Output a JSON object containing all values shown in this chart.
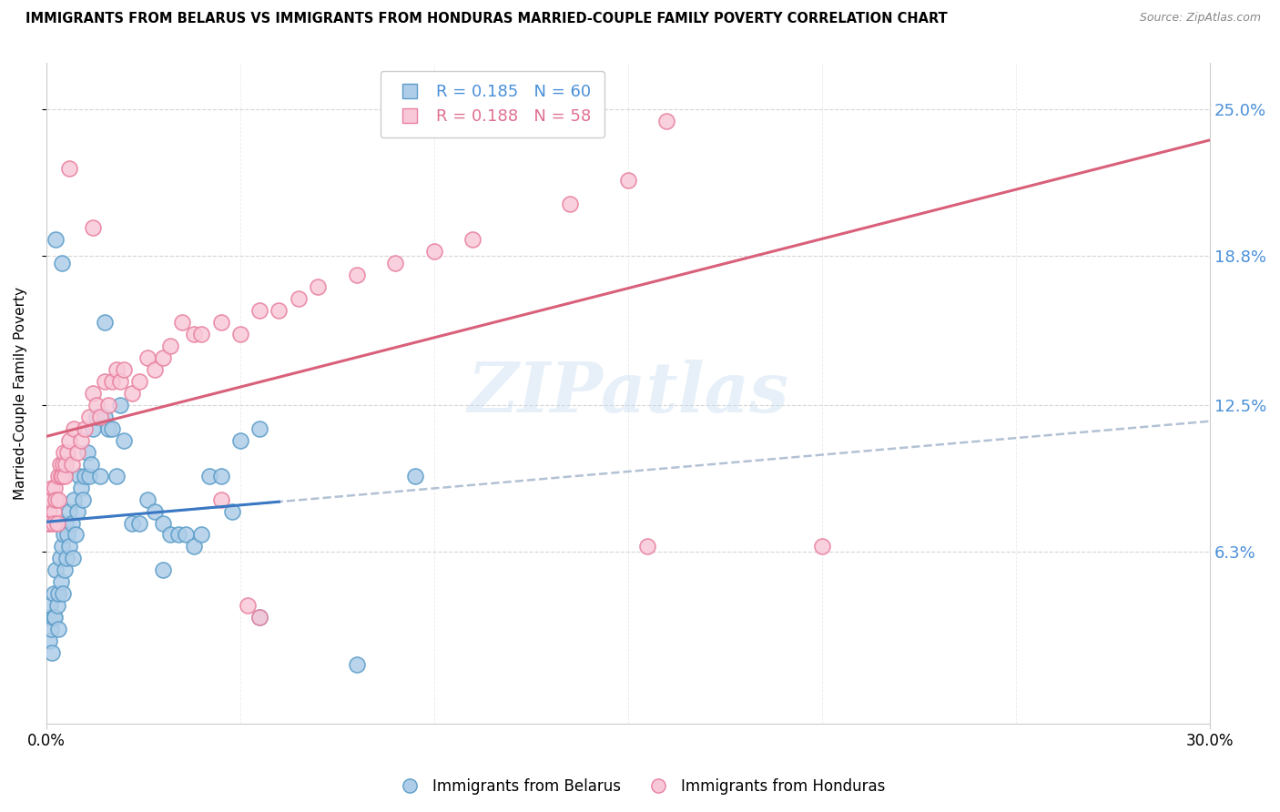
{
  "title": "IMMIGRANTS FROM BELARUS VS IMMIGRANTS FROM HONDURAS MARRIED-COUPLE FAMILY POVERTY CORRELATION CHART",
  "source": "Source: ZipAtlas.com",
  "ylabel": "Married-Couple Family Poverty",
  "ylabel_ticks": [
    "6.3%",
    "12.5%",
    "18.8%",
    "25.0%"
  ],
  "ylabel_vals": [
    6.3,
    12.5,
    18.8,
    25.0
  ],
  "xlim": [
    0.0,
    30.0
  ],
  "ylim": [
    -1.0,
    27.0
  ],
  "watermark": "ZIPatlas",
  "belarus_color": "#aecde8",
  "belarus_edge": "#5b9dc9",
  "honduras_color": "#f8c8d8",
  "honduras_edge": "#e8809e",
  "belarus_line_color": "#3a78c4",
  "honduras_line_color": "#d9607a",
  "gray_dashed_color": "#aabbd0",
  "belarus_R": 0.185,
  "belarus_N": 60,
  "honduras_R": 0.188,
  "honduras_N": 58,
  "belarus_x": [
    0.05,
    0.08,
    0.1,
    0.12,
    0.15,
    0.18,
    0.2,
    0.22,
    0.25,
    0.28,
    0.3,
    0.32,
    0.35,
    0.38,
    0.4,
    0.42,
    0.45,
    0.48,
    0.5,
    0.52,
    0.55,
    0.58,
    0.6,
    0.65,
    0.68,
    0.7,
    0.75,
    0.8,
    0.85,
    0.9,
    0.95,
    1.0,
    1.05,
    1.1,
    1.15,
    1.2,
    1.3,
    1.4,
    1.5,
    1.6,
    1.7,
    1.8,
    1.9,
    2.0,
    2.2,
    2.4,
    2.6,
    2.8,
    3.0,
    3.2,
    3.4,
    3.6,
    3.8,
    4.0,
    4.2,
    4.5,
    4.8,
    5.0,
    5.5,
    9.5
  ],
  "belarus_y": [
    3.5,
    2.5,
    4.0,
    3.0,
    2.0,
    3.5,
    4.5,
    3.5,
    5.5,
    4.0,
    3.0,
    4.5,
    6.0,
    5.0,
    6.5,
    4.5,
    7.0,
    5.5,
    7.5,
    6.0,
    7.0,
    6.5,
    8.0,
    7.5,
    6.0,
    8.5,
    7.0,
    8.0,
    9.5,
    9.0,
    8.5,
    9.5,
    10.5,
    9.5,
    10.0,
    11.5,
    12.0,
    9.5,
    12.0,
    11.5,
    11.5,
    9.5,
    12.5,
    11.0,
    7.5,
    7.5,
    8.5,
    8.0,
    7.5,
    7.0,
    7.0,
    7.0,
    6.5,
    7.0,
    9.5,
    9.5,
    8.0,
    11.0,
    11.5,
    9.5
  ],
  "honduras_x": [
    0.05,
    0.08,
    0.1,
    0.12,
    0.15,
    0.18,
    0.2,
    0.22,
    0.25,
    0.28,
    0.3,
    0.32,
    0.35,
    0.38,
    0.4,
    0.42,
    0.45,
    0.48,
    0.5,
    0.55,
    0.6,
    0.65,
    0.7,
    0.8,
    0.9,
    1.0,
    1.1,
    1.2,
    1.3,
    1.4,
    1.5,
    1.6,
    1.7,
    1.8,
    1.9,
    2.0,
    2.2,
    2.4,
    2.6,
    2.8,
    3.0,
    3.2,
    3.5,
    3.8,
    4.0,
    4.5,
    5.0,
    5.5,
    6.0,
    6.5,
    7.0,
    8.0,
    9.0,
    10.0,
    11.0,
    13.5,
    15.0,
    16.0
  ],
  "honduras_y": [
    7.5,
    8.0,
    7.5,
    8.5,
    9.0,
    8.0,
    7.5,
    9.0,
    8.5,
    7.5,
    9.5,
    8.5,
    10.0,
    9.5,
    9.5,
    10.0,
    10.5,
    9.5,
    10.0,
    10.5,
    11.0,
    10.0,
    11.5,
    10.5,
    11.0,
    11.5,
    12.0,
    13.0,
    12.5,
    12.0,
    13.5,
    12.5,
    13.5,
    14.0,
    13.5,
    14.0,
    13.0,
    13.5,
    14.5,
    14.0,
    14.5,
    15.0,
    16.0,
    15.5,
    15.5,
    16.0,
    15.5,
    16.5,
    16.5,
    17.0,
    17.5,
    18.0,
    18.5,
    19.0,
    19.5,
    21.0,
    22.0,
    24.5
  ],
  "extra_honduras_x": [
    0.6,
    1.2,
    4.5,
    5.2,
    5.5,
    15.5,
    20.0
  ],
  "extra_honduras_y": [
    22.5,
    20.0,
    8.5,
    4.0,
    3.5,
    6.5,
    6.5
  ],
  "extra_belarus_x": [
    0.25,
    0.4,
    1.5,
    3.0,
    5.5,
    8.0
  ],
  "extra_belarus_y": [
    19.5,
    18.5,
    16.0,
    5.5,
    3.5,
    1.5
  ]
}
